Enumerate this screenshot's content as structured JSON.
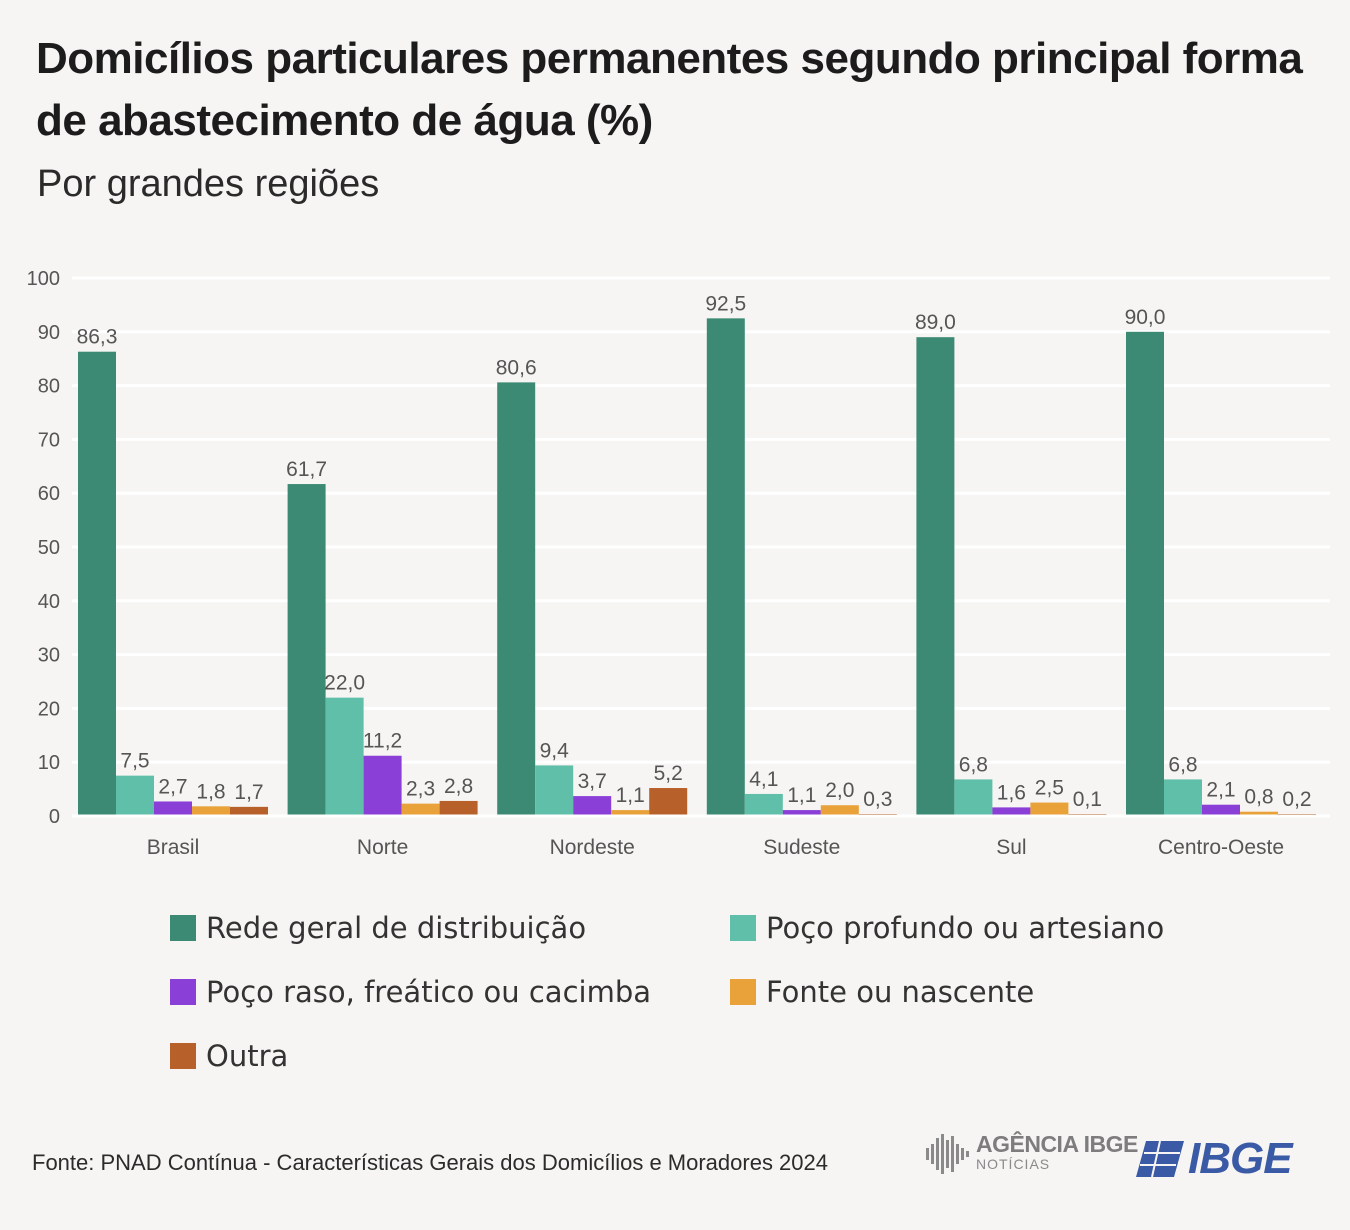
{
  "header": {
    "title": "Domicílios particulares permanentes segundo principal forma de abastecimento de água (%)",
    "subtitle": "Por grandes regiões"
  },
  "chart_data": {
    "type": "bar",
    "title": "Domicílios particulares permanentes segundo principal forma de abastecimento de água (%)",
    "subtitle": "Por grandes regiões",
    "xlabel": "",
    "ylabel": "",
    "ylim": [
      0,
      100
    ],
    "yticks": [
      "0",
      "10",
      "20",
      "30",
      "40",
      "50",
      "60",
      "70",
      "80",
      "90",
      "100"
    ],
    "grid": true,
    "legend_position": "bottom",
    "categories": [
      "Brasil",
      "Norte",
      "Nordeste",
      "Sudeste",
      "Sul",
      "Centro-Oeste"
    ],
    "series": [
      {
        "name": "Rede geral de distribuição",
        "color": "#3d8a74",
        "values": [
          86.3,
          61.7,
          80.6,
          92.5,
          89.0,
          90.0
        ],
        "labels": [
          "86,3",
          "61,7",
          "80,6",
          "92,5",
          "89,0",
          "90,0"
        ]
      },
      {
        "name": "Poço profundo ou artesiano",
        "color": "#5fbfa8",
        "values": [
          7.5,
          22.0,
          9.4,
          4.1,
          6.8,
          6.8
        ],
        "labels": [
          "7,5",
          "22,0",
          "9,4",
          "4,1",
          "6,8",
          "6,8"
        ]
      },
      {
        "name": "Poço raso, freático ou cacimba",
        "color": "#8a3fd6",
        "values": [
          2.7,
          11.2,
          3.7,
          1.1,
          1.6,
          2.1
        ],
        "labels": [
          "2,7",
          "11,2",
          "3,7",
          "1,1",
          "1,6",
          "2,1"
        ]
      },
      {
        "name": "Fonte ou nascente",
        "color": "#e9a23a",
        "values": [
          1.8,
          2.3,
          1.1,
          2.0,
          2.5,
          0.8
        ],
        "labels": [
          "1,8",
          "2,3",
          "1,1",
          "2,0",
          "2,5",
          "0,8"
        ]
      },
      {
        "name": "Outra",
        "color": "#b8602a",
        "values": [
          1.7,
          2.8,
          5.2,
          0.3,
          0.1,
          0.2
        ],
        "labels": [
          "1,7",
          "2,8",
          "5,2",
          "0,3",
          "0,1",
          "0,2"
        ]
      }
    ]
  },
  "footer": {
    "source": "Fonte: PNAD Contínua - Características Gerais dos Domicílios e Moradores 2024",
    "agencia_name": "AGÊNCIA IBGE",
    "agencia_sub": "NOTÍCIAS",
    "ibge_logo": "IBGE"
  }
}
